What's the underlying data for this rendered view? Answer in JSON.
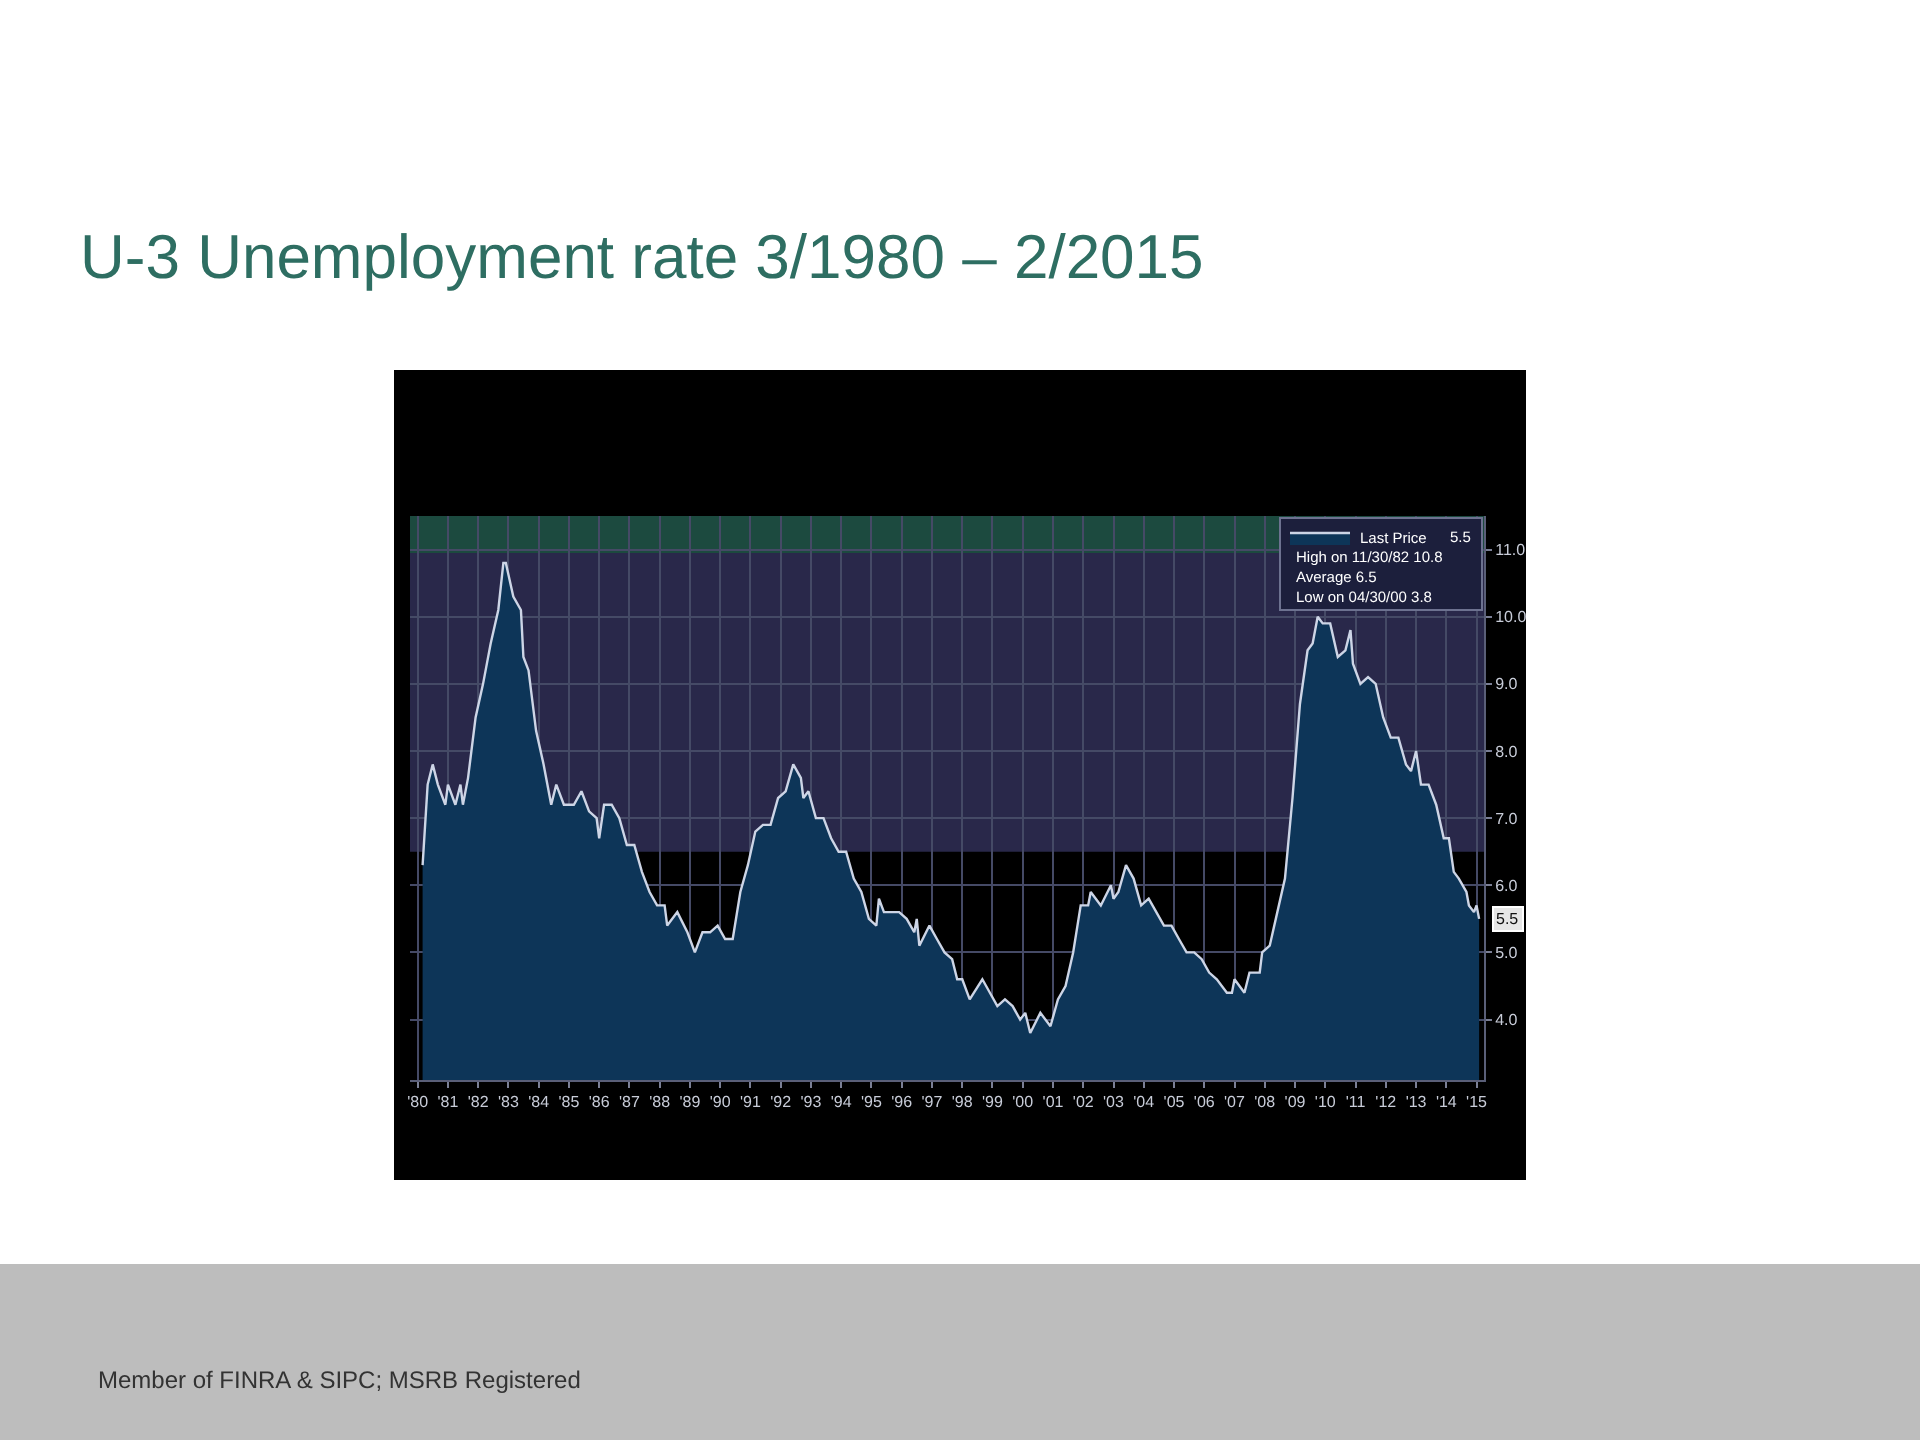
{
  "chart_data": {
    "type": "area",
    "title": "U-3 Unemployment rate 3/1980 – 2/2015",
    "x": [
      "1980-03",
      "1980-05",
      "1980-07",
      "1980-09",
      "1980-12",
      "1981-01",
      "1981-04",
      "1981-06",
      "1981-07",
      "1981-09",
      "1981-12",
      "1982-03",
      "1982-06",
      "1982-09",
      "1982-11",
      "1982-12",
      "1983-03",
      "1983-06",
      "1983-07",
      "1983-09",
      "1983-12",
      "1984-03",
      "1984-06",
      "1984-08",
      "1984-11",
      "1985-03",
      "1985-06",
      "1985-09",
      "1985-12",
      "1986-01",
      "1986-03",
      "1986-06",
      "1986-09",
      "1986-12",
      "1987-03",
      "1987-06",
      "1987-09",
      "1987-12",
      "1988-03",
      "1988-04",
      "1988-08",
      "1988-12",
      "1989-03",
      "1989-06",
      "1989-09",
      "1989-12",
      "1990-03",
      "1990-06",
      "1990-09",
      "1990-12",
      "1991-03",
      "1991-06",
      "1991-09",
      "1991-12",
      "1992-03",
      "1992-06",
      "1992-09",
      "1992-10",
      "1992-12",
      "1993-03",
      "1993-06",
      "1993-09",
      "1993-12",
      "1994-03",
      "1994-06",
      "1994-09",
      "1994-12",
      "1995-03",
      "1995-04",
      "1995-06",
      "1995-09",
      "1995-12",
      "1996-03",
      "1996-06",
      "1996-07",
      "1996-08",
      "1996-12",
      "1997-03",
      "1997-06",
      "1997-09",
      "1997-11",
      "1998-01",
      "1998-04",
      "1998-09",
      "1998-12",
      "1999-03",
      "1999-06",
      "1999-09",
      "1999-12",
      "2000-02",
      "2000-04",
      "2000-08",
      "2000-12",
      "2001-03",
      "2001-06",
      "2001-09",
      "2001-12",
      "2002-03",
      "2002-04",
      "2002-08",
      "2002-12",
      "2003-01",
      "2003-03",
      "2003-06",
      "2003-09",
      "2003-12",
      "2004-03",
      "2004-06",
      "2004-09",
      "2004-12",
      "2005-03",
      "2005-06",
      "2005-09",
      "2005-12",
      "2006-03",
      "2006-06",
      "2006-10",
      "2006-12",
      "2007-01",
      "2007-05",
      "2007-07",
      "2007-11",
      "2007-12",
      "2008-03",
      "2008-06",
      "2008-09",
      "2008-12",
      "2009-03",
      "2009-06",
      "2009-08",
      "2009-10",
      "2009-12",
      "2010-03",
      "2010-06",
      "2010-09",
      "2010-11",
      "2010-12",
      "2011-03",
      "2011-06",
      "2011-09",
      "2011-12",
      "2012-03",
      "2012-06",
      "2012-09",
      "2012-11",
      "2013-01",
      "2013-03",
      "2013-06",
      "2013-09",
      "2013-12",
      "2014-02",
      "2014-04",
      "2014-06",
      "2014-09",
      "2014-10",
      "2014-12",
      "2015-01",
      "2015-02"
    ],
    "series": [
      {
        "name": "Last Price",
        "color": "#0d3558",
        "values": [
          6.3,
          7.5,
          7.8,
          7.5,
          7.2,
          7.5,
          7.2,
          7.5,
          7.2,
          7.6,
          8.5,
          9.0,
          9.6,
          10.1,
          10.8,
          10.8,
          10.3,
          10.1,
          9.4,
          9.2,
          8.3,
          7.8,
          7.2,
          7.5,
          7.2,
          7.2,
          7.4,
          7.1,
          7.0,
          6.7,
          7.2,
          7.2,
          7.0,
          6.6,
          6.6,
          6.2,
          5.9,
          5.7,
          5.7,
          5.4,
          5.6,
          5.3,
          5.0,
          5.3,
          5.3,
          5.4,
          5.2,
          5.2,
          5.9,
          6.3,
          6.8,
          6.9,
          6.9,
          7.3,
          7.4,
          7.8,
          7.6,
          7.3,
          7.4,
          7.0,
          7.0,
          6.7,
          6.5,
          6.5,
          6.1,
          5.9,
          5.5,
          5.4,
          5.8,
          5.6,
          5.6,
          5.6,
          5.5,
          5.3,
          5.5,
          5.1,
          5.4,
          5.2,
          5.0,
          4.9,
          4.6,
          4.6,
          4.3,
          4.6,
          4.4,
          4.2,
          4.3,
          4.2,
          4.0,
          4.1,
          3.8,
          4.1,
          3.9,
          4.3,
          4.5,
          5.0,
          5.7,
          5.7,
          5.9,
          5.7,
          6.0,
          5.8,
          5.9,
          6.3,
          6.1,
          5.7,
          5.8,
          5.6,
          5.4,
          5.4,
          5.2,
          5.0,
          5.0,
          4.9,
          4.7,
          4.6,
          4.4,
          4.4,
          4.6,
          4.4,
          4.7,
          4.7,
          5.0,
          5.1,
          5.6,
          6.1,
          7.3,
          8.7,
          9.5,
          9.6,
          10.0,
          9.9,
          9.9,
          9.4,
          9.5,
          9.8,
          9.3,
          9.0,
          9.1,
          9.0,
          8.5,
          8.2,
          8.2,
          7.8,
          7.7,
          8.0,
          7.5,
          7.5,
          7.2,
          6.7,
          6.7,
          6.2,
          6.1,
          5.9,
          5.7,
          5.6,
          5.7,
          5.5
        ]
      }
    ],
    "xlim": [
      "1979-10",
      "2015-04"
    ],
    "xticks": [
      {
        "value": "1980",
        "label": "'80"
      },
      {
        "value": "1981",
        "label": "'81"
      },
      {
        "value": "1982",
        "label": "'82"
      },
      {
        "value": "1983",
        "label": "'83"
      },
      {
        "value": "1984",
        "label": "'84"
      },
      {
        "value": "1985",
        "label": "'85"
      },
      {
        "value": "1986",
        "label": "'86"
      },
      {
        "value": "1987",
        "label": "'87"
      },
      {
        "value": "1988",
        "label": "'88"
      },
      {
        "value": "1989",
        "label": "'89"
      },
      {
        "value": "1990",
        "label": "'90"
      },
      {
        "value": "1991",
        "label": "'91"
      },
      {
        "value": "1992",
        "label": "'92"
      },
      {
        "value": "1993",
        "label": "'93"
      },
      {
        "value": "1994",
        "label": "'94"
      },
      {
        "value": "1995",
        "label": "'95"
      },
      {
        "value": "1996",
        "label": "'96"
      },
      {
        "value": "1997",
        "label": "'97"
      },
      {
        "value": "1998",
        "label": "'98"
      },
      {
        "value": "1999",
        "label": "'99"
      },
      {
        "value": "2000",
        "label": "'00"
      },
      {
        "value": "2001",
        "label": "'01"
      },
      {
        "value": "2002",
        "label": "'02"
      },
      {
        "value": "2003",
        "label": "'03"
      },
      {
        "value": "2004",
        "label": "'04"
      },
      {
        "value": "2005",
        "label": "'05"
      },
      {
        "value": "2006",
        "label": "'06"
      },
      {
        "value": "2007",
        "label": "'07"
      },
      {
        "value": "2008",
        "label": "'08"
      },
      {
        "value": "2009",
        "label": "'09"
      },
      {
        "value": "2010",
        "label": "'10"
      },
      {
        "value": "2011",
        "label": "'11"
      },
      {
        "value": "2012",
        "label": "'12"
      },
      {
        "value": "2013",
        "label": "'13"
      },
      {
        "value": "2014",
        "label": "'14"
      },
      {
        "value": "2015",
        "label": "'15"
      }
    ],
    "ylim": [
      3.1,
      11.5
    ],
    "yticks": [
      {
        "value": 4,
        "label": "4.0"
      },
      {
        "value": 5,
        "label": "5.0"
      },
      {
        "value": 6,
        "label": "6.0"
      },
      {
        "value": 7,
        "label": "7.0"
      },
      {
        "value": 8,
        "label": "8.0"
      },
      {
        "value": 9,
        "label": "9.0"
      },
      {
        "value": 10,
        "label": "10.0"
      },
      {
        "value": 11,
        "label": "11.0"
      }
    ],
    "grid": true,
    "legend": "top right",
    "bands": [
      {
        "axis": "y",
        "from": 6.5,
        "to": 10.95,
        "color": "#29284a"
      },
      {
        "axis": "y",
        "from": 10.95,
        "to": 11.5,
        "color": "#1c4a3f"
      }
    ],
    "annotations": [
      "5.5",
      "High on 11/30/82 10.8",
      "Average 6.5",
      "Low on 04/30/00 3.8",
      {
        "text": "5.5",
        "x": "2015-02",
        "y": 5.5
      },
      "Member of FINRA & SIPC; MSRB Registered"
    ]
  }
}
